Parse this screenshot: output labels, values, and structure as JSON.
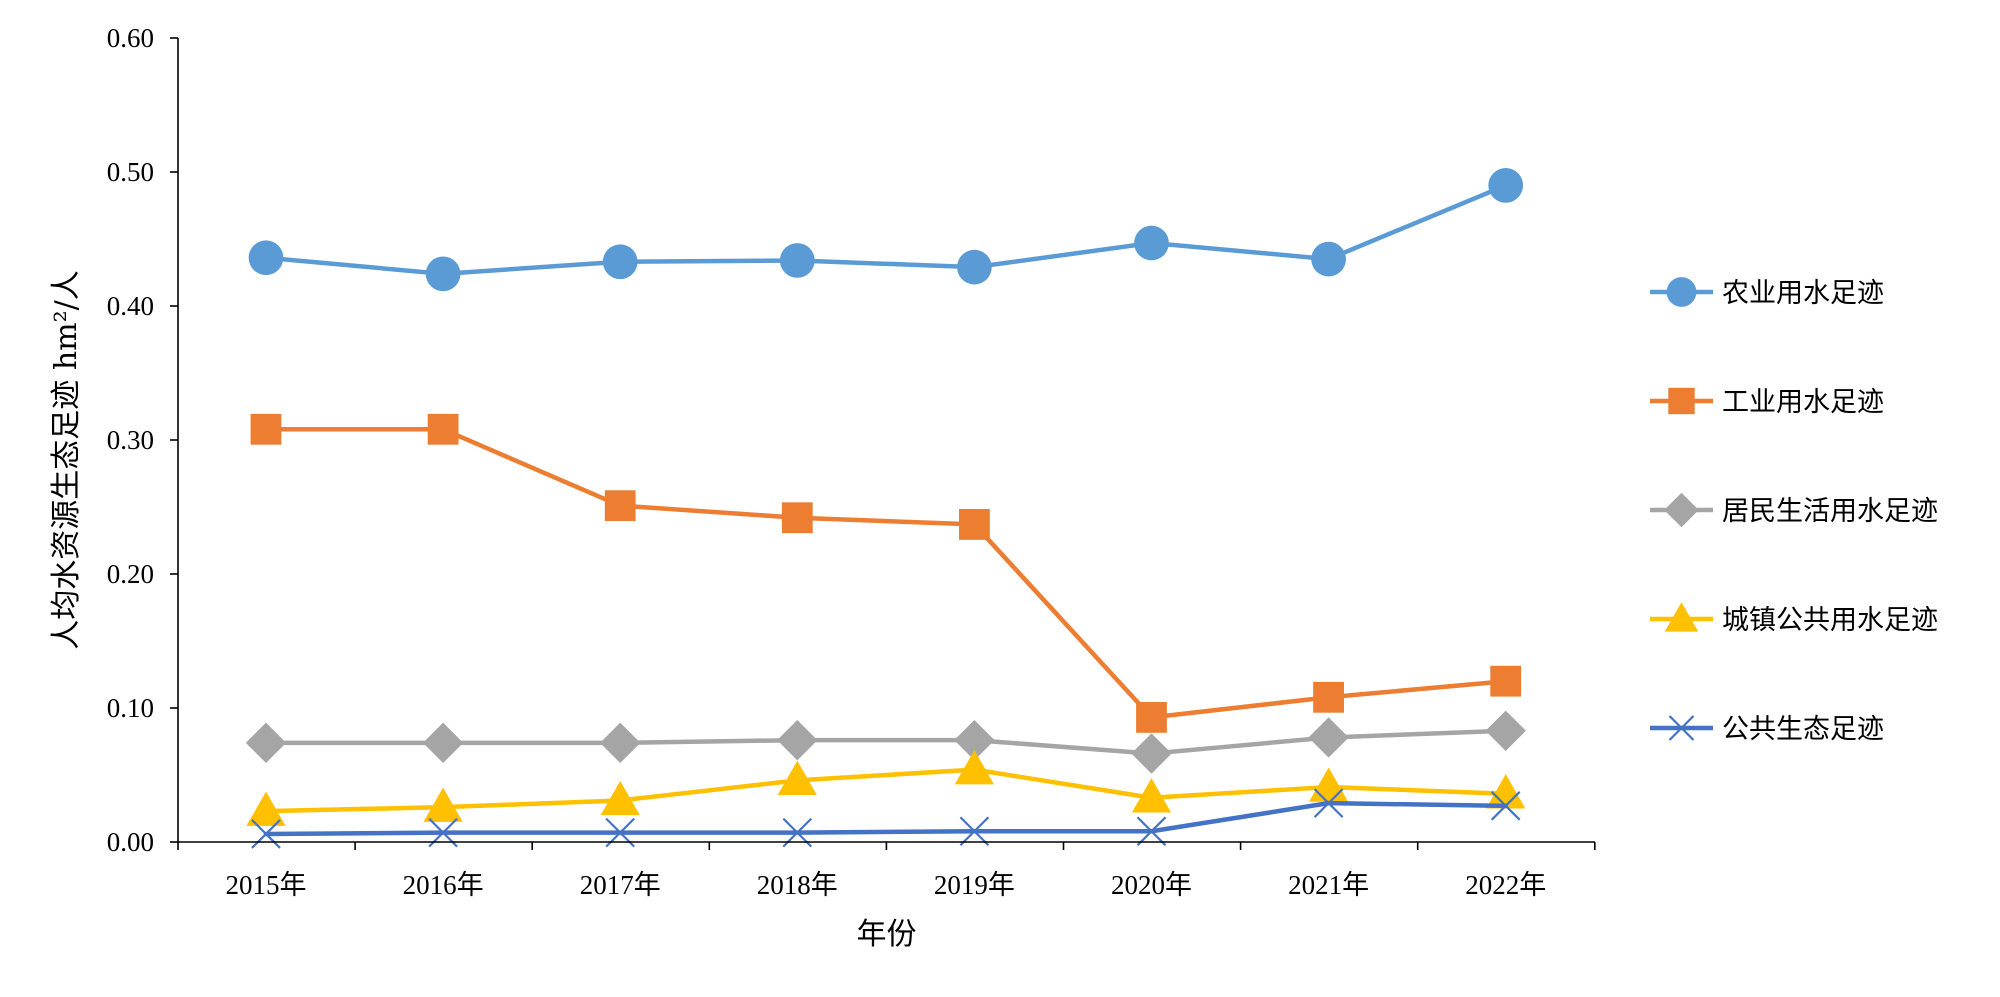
{
  "chart_data": {
    "type": "line",
    "title": "",
    "xlabel": "年份",
    "ylabel": "人均水资源生态足迹 hm²/人",
    "ylim": [
      0,
      0.6
    ],
    "ytick_values": [
      0.0,
      0.1,
      0.2,
      0.3,
      0.4,
      0.5,
      0.6
    ],
    "ytick_labels": [
      "0.00",
      "0.10",
      "0.20",
      "0.30",
      "0.40",
      "0.50",
      "0.60"
    ],
    "categories": [
      "2015年",
      "2016年",
      "2017年",
      "2018年",
      "2019年",
      "2020年",
      "2021年",
      "2022年"
    ],
    "grid": false,
    "legend_position": "right",
    "series": [
      {
        "name": "农业用水足迹",
        "marker": "circle",
        "color": "#5B9BD5",
        "values": [
          0.436,
          0.424,
          0.433,
          0.434,
          0.429,
          0.447,
          0.435,
          0.49
        ]
      },
      {
        "name": "工业用水足迹",
        "marker": "square",
        "color": "#ED7D31",
        "values": [
          0.308,
          0.308,
          0.251,
          0.242,
          0.237,
          0.093,
          0.108,
          0.12
        ]
      },
      {
        "name": "居民生活用水足迹",
        "marker": "diamond",
        "color": "#A5A5A5",
        "values": [
          0.074,
          0.074,
          0.074,
          0.076,
          0.076,
          0.066,
          0.078,
          0.083
        ]
      },
      {
        "name": "城镇公共用水足迹",
        "marker": "triangle",
        "color": "#FFC000",
        "values": [
          0.023,
          0.026,
          0.031,
          0.046,
          0.054,
          0.033,
          0.041,
          0.036
        ]
      },
      {
        "name": "公共生态足迹",
        "marker": "x",
        "color": "#4472C4",
        "values": [
          0.006,
          0.007,
          0.007,
          0.007,
          0.008,
          0.008,
          0.029,
          0.027
        ]
      }
    ]
  }
}
